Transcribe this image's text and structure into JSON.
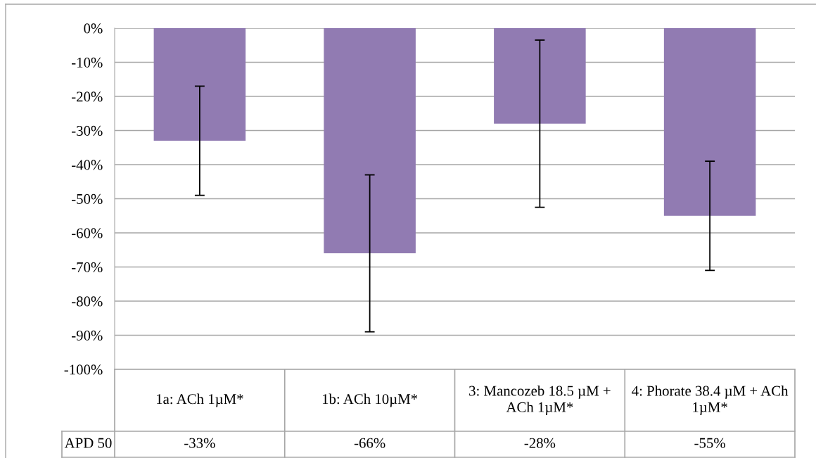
{
  "chart_data": {
    "type": "bar",
    "categories": [
      "1a: ACh 1µM*",
      "1b: ACh 10µM*",
      "3: Mancozeb 18.5 µM + ACh 1µM*",
      "4: Phorate 38.4 µM + ACh 1µM*"
    ],
    "series": [
      {
        "name": "APD 50",
        "color": "#917bb2",
        "values": [
          -33,
          -66,
          -28,
          -55
        ],
        "errors": [
          16,
          23,
          24.5,
          16
        ],
        "value_labels": [
          "-33%",
          "-66%",
          "-28%",
          "-55%"
        ]
      }
    ],
    "ylim": [
      -100,
      0
    ],
    "yticks": [
      {
        "value": 0,
        "label": "0%"
      },
      {
        "value": -10,
        "label": "-10%"
      },
      {
        "value": -20,
        "label": "-20%"
      },
      {
        "value": -30,
        "label": "-30%"
      },
      {
        "value": -40,
        "label": "-40%"
      },
      {
        "value": -50,
        "label": "-50%"
      },
      {
        "value": -60,
        "label": "-60%"
      },
      {
        "value": -70,
        "label": "-70%"
      },
      {
        "value": -80,
        "label": "-80%"
      },
      {
        "value": -90,
        "label": "-90%"
      },
      {
        "value": -100,
        "label": "-100%"
      }
    ],
    "grid": "y"
  }
}
